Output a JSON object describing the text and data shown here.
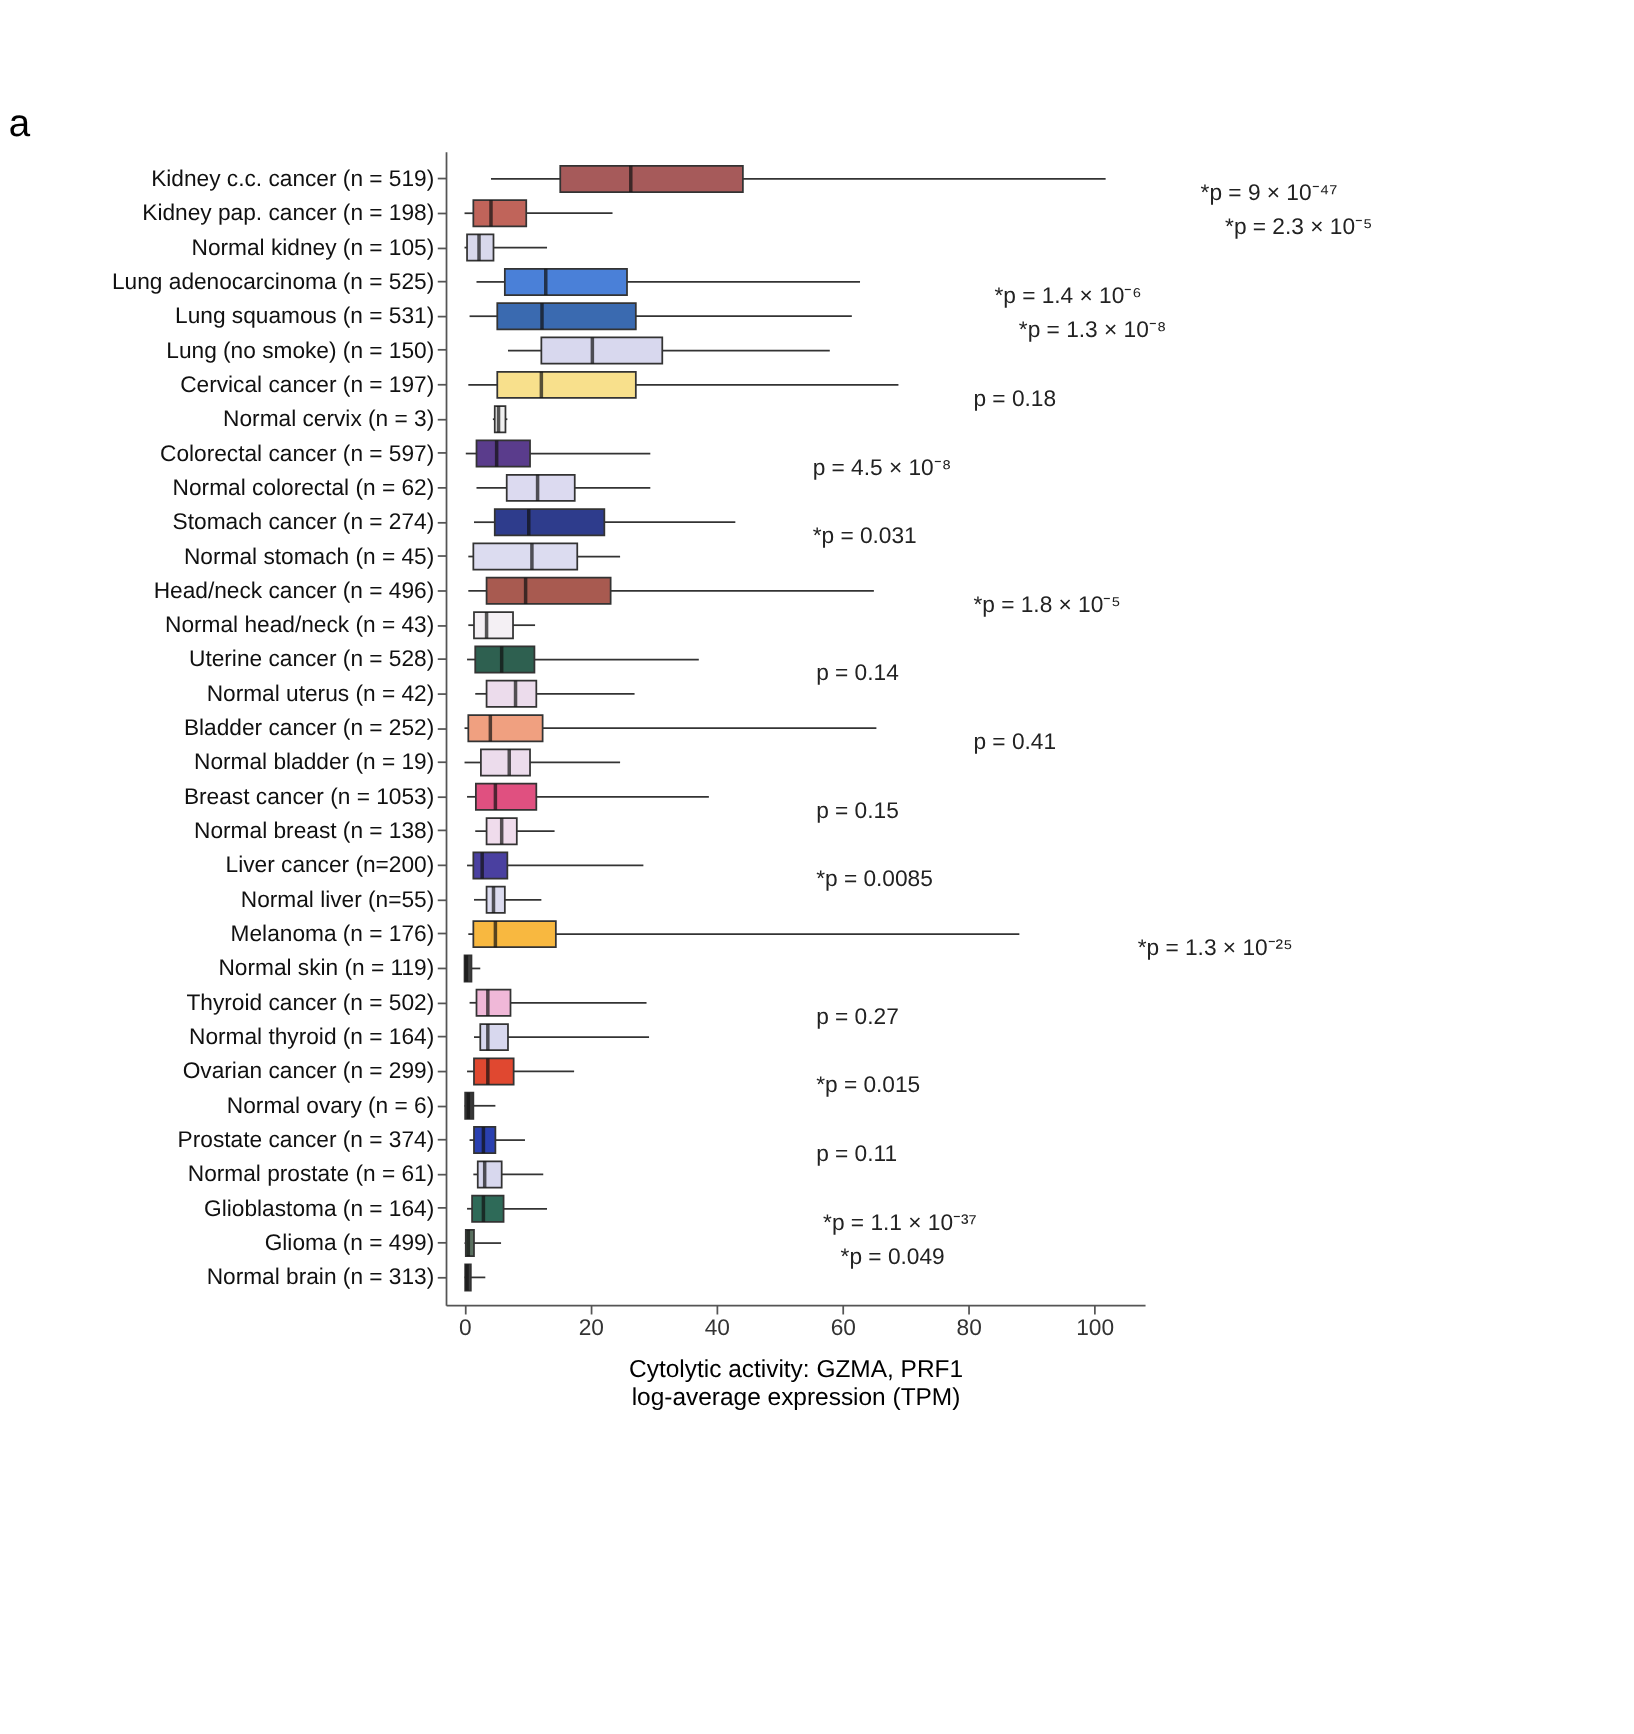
{
  "chart_data": {
    "type": "box",
    "title": "a",
    "orientation": "horizontal",
    "xlabel": "Cytolytic activity: GZMA, PRF1\nlog-average expression (TPM)",
    "categories": [
      "Kidney c.c. cancer (n = 519)",
      "Kidney pap. cancer (n = 198)",
      "Normal kidney (n = 105)",
      "Lung adenocarcinoma (n = 525)",
      "Lung squamous (n = 531)",
      "Lung (no smoke) (n = 150)",
      "Cervical cancer (n = 197)",
      "Normal cervix (n = 3)",
      "Colorectal cancer (n = 597)",
      "Normal colorectal (n = 62)",
      "Stomach cancer (n = 274)",
      "Normal stomach (n = 45)",
      "Head/neck cancer (n = 496)",
      "Normal head/neck (n = 43)",
      "Uterine cancer (n = 528)",
      "Normal uterus (n = 42)",
      "Bladder cancer (n = 252)",
      "Normal bladder (n = 19)",
      "Breast cancer (n = 1053)",
      "Normal breast (n = 138)",
      "Liver cancer (n=200)",
      "Normal liver (n=55)",
      "Melanoma (n = 176)",
      "Normal skin (n = 119)",
      "Thyroid cancer (n = 502)",
      "Normal thyroid (n = 164)",
      "Ovarian cancer (n = 299)",
      "Normal ovary (n = 6)",
      "Prostate cancer (n = 374)",
      "Normal prostate (n = 61)",
      "Glioblastoma (n = 164)",
      "Glioma (n = 499)",
      "Normal brain (n = 313)"
    ],
    "boxes": [
      {
        "low": 4.2,
        "q1": 15.2,
        "median": 26.4,
        "q3": 44.2,
        "high": 101.8
      },
      {
        "low": 0,
        "q1": 1.4,
        "median": 4.2,
        "q3": 9.8,
        "high": 23.5
      },
      {
        "low": 0,
        "q1": 0.4,
        "median": 2.3,
        "q3": 4.6,
        "high": 13.1
      },
      {
        "low": 1.9,
        "q1": 6.4,
        "median": 12.9,
        "q3": 25.8,
        "high": 62.8
      },
      {
        "low": 0.8,
        "q1": 5.2,
        "median": 12.3,
        "q3": 27.2,
        "high": 61.5
      },
      {
        "low": 6.9,
        "q1": 12.2,
        "median": 20.3,
        "q3": 31.4,
        "high": 58
      },
      {
        "low": 0.6,
        "q1": 5.2,
        "median": 12.2,
        "q3": 27.2,
        "high": 68.9
      },
      {
        "low": 4.5,
        "q1": 4.8,
        "median": 5.4,
        "q3": 6.5,
        "high": 6.8
      },
      {
        "low": 0.2,
        "q1": 1.9,
        "median": 5.1,
        "q3": 10.4,
        "high": 29.5
      },
      {
        "low": 1.9,
        "q1": 6.7,
        "median": 11.6,
        "q3": 17.5,
        "high": 29.5
      },
      {
        "low": 1.5,
        "q1": 4.8,
        "median": 10.2,
        "q3": 22.2,
        "high": 43
      },
      {
        "low": 0.6,
        "q1": 1.4,
        "median": 10.7,
        "q3": 17.9,
        "high": 24.7
      },
      {
        "low": 0.6,
        "q1": 3.5,
        "median": 9.7,
        "q3": 23.2,
        "high": 65
      },
      {
        "low": 0.6,
        "q1": 1.5,
        "median": 3.5,
        "q3": 7.7,
        "high": 11.2
      },
      {
        "low": 0.4,
        "q1": 1.7,
        "median": 5.9,
        "q3": 11.1,
        "high": 37.2
      },
      {
        "low": 1.7,
        "q1": 3.5,
        "median": 8.1,
        "q3": 11.4,
        "high": 27
      },
      {
        "low": 0,
        "q1": 0.6,
        "median": 4.1,
        "q3": 12.4,
        "high": 65.4
      },
      {
        "low": 0,
        "q1": 2.6,
        "median": 7.1,
        "q3": 10.4,
        "high": 24.7
      },
      {
        "low": 0.4,
        "q1": 1.8,
        "median": 4.9,
        "q3": 11.4,
        "high": 38.8
      },
      {
        "low": 1.7,
        "q1": 3.5,
        "median": 5.9,
        "q3": 8.3,
        "high": 14.3
      },
      {
        "low": 0.4,
        "q1": 1.4,
        "median": 2.8,
        "q3": 6.8,
        "high": 28.4
      },
      {
        "low": 1.5,
        "q1": 3.5,
        "median": 4.6,
        "q3": 6.4,
        "high": 12.2
      },
      {
        "low": 0.6,
        "q1": 1.4,
        "median": 4.9,
        "q3": 14.5,
        "high": 88.1
      },
      {
        "low": 0,
        "q1": 0,
        "median": 0.3,
        "q3": 1.1,
        "high": 2.5
      },
      {
        "low": 0.8,
        "q1": 1.9,
        "median": 3.7,
        "q3": 7.3,
        "high": 28.9
      },
      {
        "low": 1.5,
        "q1": 2.5,
        "median": 3.7,
        "q3": 6.9,
        "high": 29.3
      },
      {
        "low": 0.4,
        "q1": 1.5,
        "median": 3.7,
        "q3": 7.8,
        "high": 17.4
      },
      {
        "low": 0,
        "q1": 0.1,
        "median": 0.6,
        "q3": 1.4,
        "high": 4.9
      },
      {
        "low": 0.8,
        "q1": 1.5,
        "median": 3,
        "q3": 4.9,
        "high": 9.6
      },
      {
        "low": 1.4,
        "q1": 2.1,
        "median": 3.2,
        "q3": 5.9,
        "high": 12.5
      },
      {
        "low": 0.4,
        "q1": 1.2,
        "median": 3,
        "q3": 6.2,
        "high": 13.1
      },
      {
        "low": 0,
        "q1": 0.2,
        "median": 0.6,
        "q3": 1.5,
        "high": 5.8
      },
      {
        "low": 0,
        "q1": 0.1,
        "median": 0.4,
        "q3": 1,
        "high": 3.3
      }
    ],
    "colors": [
      "#a65a5a",
      "#c0645a",
      "#d8d8ec",
      "#4a80d8",
      "#3a6ab0",
      "#d8d8ee",
      "#f8e08c",
      "#f0f0f0",
      "#5a3c8c",
      "#dcdaf0",
      "#2e3c8c",
      "#dcdcf0",
      "#a85a50",
      "#f4f0f4",
      "#2e6050",
      "#ecdcec",
      "#f0a080",
      "#ecdcec",
      "#e05080",
      "#f0dcec",
      "#4a40a0",
      "#dcdcf0",
      "#f8b840",
      "#404040",
      "#f0b8d8",
      "#d8d8ee",
      "#e04830",
      "#383838",
      "#2a40b0",
      "#d8d8ee",
      "#2e6a58",
      "#5a7060",
      "#404040"
    ],
    "xlim": [
      -3,
      108
    ],
    "xticks": [
      0,
      20,
      40,
      60,
      80,
      100
    ],
    "grid": false,
    "annotations": [
      "*p = 9 × 10⁻⁴⁷",
      "*p = 2.3 × 10⁻⁵",
      "*p = 1.4 × 10⁻⁶",
      "*p = 1.3 × 10⁻⁸",
      "p = 0.18",
      "p = 4.5 × 10⁻⁸",
      "*p = 0.031",
      "*p = 1.8 × 10⁻⁵",
      "p = 0.14",
      "p = 0.41",
      "p = 0.15",
      "*p = 0.0085",
      "*p = 1.3 × 10⁻²⁵",
      "p = 0.27",
      "*p = 0.015",
      "p = 0.11",
      "*p = 1.1 × 10⁻³⁷",
      "*p = 0.049"
    ]
  }
}
